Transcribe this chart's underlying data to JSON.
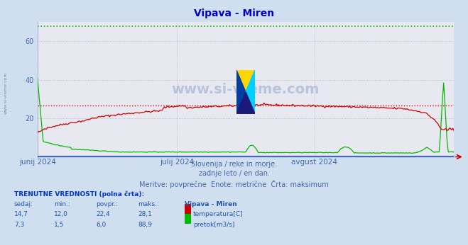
{
  "title": "Vipava - Miren",
  "title_color": "#0000cc",
  "bg_color": "#d0dff0",
  "plot_bg_color": "#e8e8f0",
  "grid_color": "#b0b0c0",
  "x_label_color": "#4466aa",
  "y_label_color": "#4466aa",
  "ylim": [
    0,
    70
  ],
  "yticks": [
    20,
    40,
    60
  ],
  "x_labels": [
    "junij 2024",
    "julij 2024",
    "avgust 2024"
  ],
  "temp_color": "#cc0000",
  "flow_color": "#00bb00",
  "flow_max_display": 68,
  "temp_max_display": 26.8,
  "subtitle1": "Slovenija / reke in morje.",
  "subtitle2": "zadnje leto / en dan.",
  "subtitle3": "Meritve: povprečne  Enote: metrične  Črta: maksimum",
  "footer_title": "TRENUTNE VREDNOSTI (polna črta):",
  "col_headers": [
    "sedaj:",
    "min.:",
    "povpr.:",
    "maks.:",
    "Vipava - Miren"
  ],
  "row1": [
    "14,7",
    "12,0",
    "22,4",
    "28,1"
  ],
  "row1_label": "temperatura[C]",
  "row2": [
    "7,3",
    "1,5",
    "6,0",
    "88,9"
  ],
  "row2_label": "pretok[m3/s]",
  "watermark": "www.si-vreme.com",
  "watermark_color": "#3355aa",
  "watermark_alpha": 0.25,
  "side_watermark": "www.si-vreme.com",
  "n_points": 365,
  "subtitle_color": "#4466aa",
  "footer_color": "#2255aa"
}
